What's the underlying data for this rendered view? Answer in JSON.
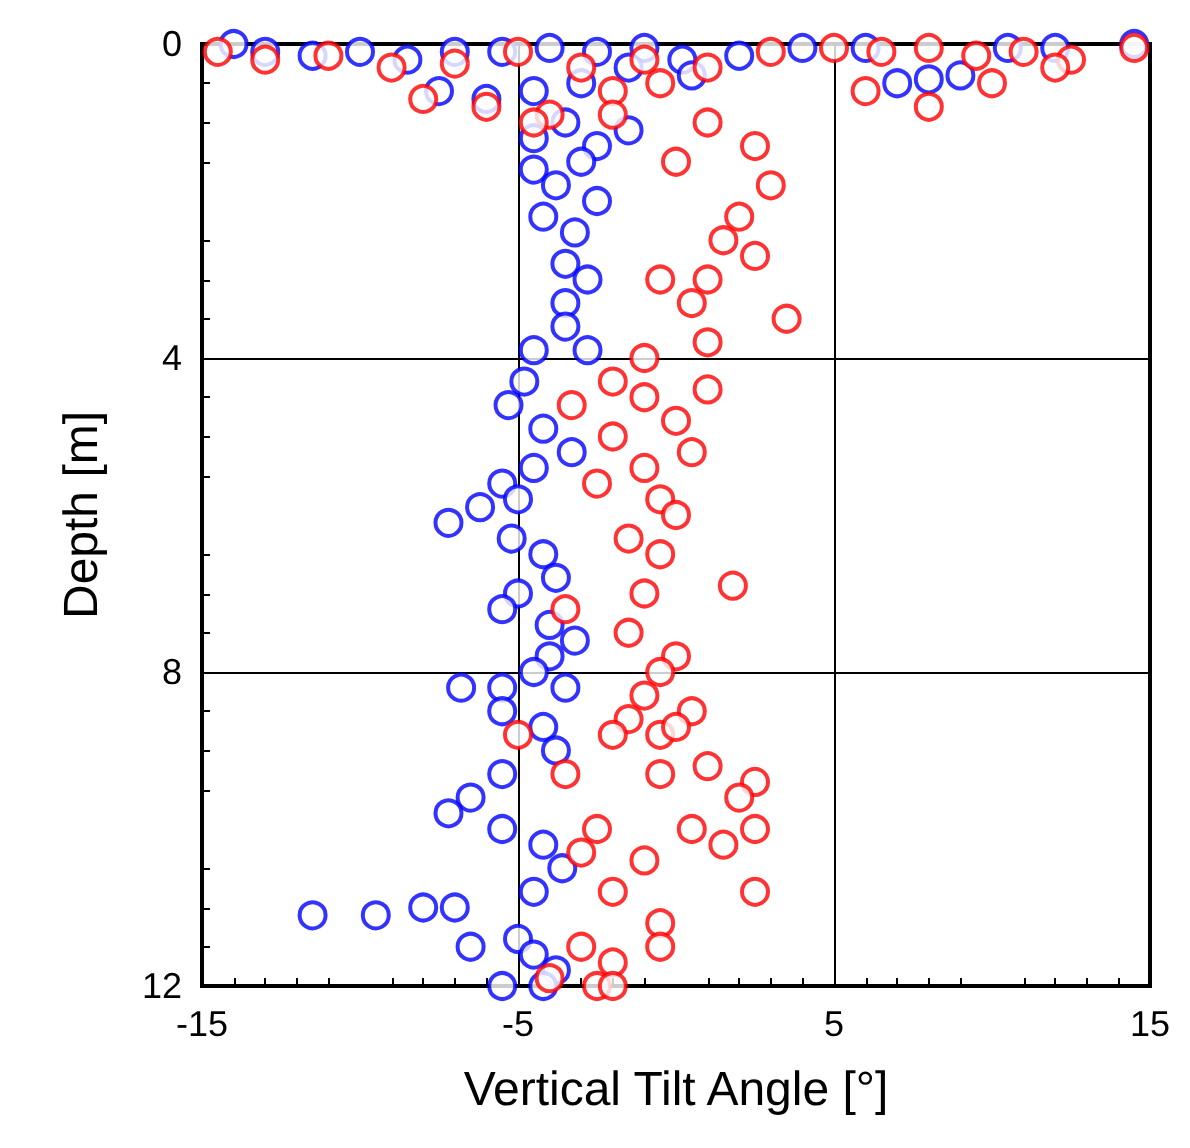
{
  "chart_data": {
    "type": "scatter",
    "xlabel": "Vertical Tilt Angle [°]",
    "ylabel": "Depth [m]",
    "xlim": [
      -15,
      15
    ],
    "xticks": [
      -15,
      -5,
      5,
      15
    ],
    "ylim": [
      12,
      0
    ],
    "yticks": [
      0,
      4,
      8,
      12
    ],
    "grid": true,
    "marker": "circle",
    "series": [
      {
        "color": "#0000ff",
        "x": [
          -14,
          -13,
          -11.5,
          -10,
          -8.5,
          -7,
          -5.5,
          -4,
          -2.5,
          -1,
          0.2,
          2,
          4,
          6,
          8,
          10.5,
          12,
          14.5,
          -7.5,
          -6,
          -4.5,
          -3,
          -1.5,
          0.5,
          7,
          9,
          -4.5,
          -3.5,
          -2.5,
          -1.5,
          -4.5,
          -3.8,
          -3,
          -2.5,
          -3.2,
          -4.2,
          -3.5,
          -2.8,
          -3.5,
          -4.5,
          -3.5,
          -2.8,
          -4.8,
          -5.3,
          -4.2,
          -3.3,
          -4.5,
          -5.5,
          -5,
          -6.2,
          -7.2,
          -5.2,
          -4.2,
          -3.8,
          -5,
          -5.5,
          -4,
          -3.2,
          -4,
          -4.5,
          -3.5,
          -5.5,
          -6.8,
          -5.5,
          -4.2,
          -3.8,
          -5.5,
          -6.5,
          -7.2,
          -5.5,
          -4.2,
          -3.6,
          -4.5,
          -8,
          -11.5,
          -9.5,
          -7,
          -5,
          -6.5,
          -4.5,
          -3.8,
          -5.5,
          -4.2
        ],
        "values": [
          0.0,
          0.1,
          0.15,
          0.1,
          0.2,
          0.1,
          0.1,
          0.05,
          0.1,
          0.05,
          0.2,
          0.15,
          0.05,
          0.05,
          0.45,
          0.05,
          0.05,
          0.0,
          0.6,
          0.7,
          0.6,
          0.5,
          0.3,
          0.4,
          0.5,
          0.4,
          1.2,
          1.0,
          1.3,
          1.1,
          1.6,
          1.8,
          1.5,
          2.0,
          2.4,
          2.2,
          2.8,
          3.0,
          3.3,
          3.9,
          3.6,
          3.9,
          4.3,
          4.6,
          4.9,
          5.2,
          5.4,
          5.6,
          5.8,
          5.9,
          6.1,
          6.3,
          6.5,
          6.8,
          7.0,
          7.2,
          7.4,
          7.6,
          7.8,
          8.0,
          8.2,
          8.2,
          8.2,
          8.5,
          8.7,
          9.0,
          9.3,
          9.6,
          9.8,
          10.0,
          10.2,
          10.5,
          10.8,
          11.0,
          11.1,
          11.1,
          11.0,
          11.4,
          11.5,
          11.6,
          11.8,
          12.0,
          12.0
        ]
      },
      {
        "color": "#ff0000",
        "x": [
          -14.5,
          -13,
          -11,
          -9,
          -7,
          -5,
          -3,
          -1,
          1,
          3,
          5,
          6.5,
          8,
          9.5,
          11,
          12.5,
          14.5,
          -8,
          -6,
          -4,
          -2,
          -0.5,
          6,
          8,
          10,
          12,
          -4.5,
          -2,
          0,
          1,
          2.5,
          3,
          2,
          1.5,
          2.5,
          1,
          -0.5,
          0.5,
          3.5,
          1,
          -1,
          -2,
          -3.3,
          -1,
          1,
          0,
          -2,
          -1,
          0.5,
          -2.5,
          -0.5,
          0,
          -1.5,
          -0.5,
          1.8,
          -1,
          -3.5,
          -1.5,
          0,
          -0.5,
          -1,
          0.5,
          -1.5,
          -0.5,
          -5,
          -2,
          0,
          -3.5,
          -0.5,
          1,
          2.5,
          2,
          -2.5,
          0.5,
          2.5,
          -3,
          -1,
          1.5,
          2.5,
          -2,
          -0.5,
          -3,
          -2,
          -0.5,
          -4,
          -2.5,
          -2
        ],
        "values": [
          0.1,
          0.2,
          0.15,
          0.3,
          0.25,
          0.1,
          0.3,
          0.2,
          0.3,
          0.1,
          0.05,
          0.1,
          0.05,
          0.15,
          0.1,
          0.2,
          0.05,
          0.7,
          0.8,
          0.9,
          0.6,
          0.5,
          0.6,
          0.8,
          0.5,
          0.3,
          1.0,
          0.9,
          1.5,
          1.0,
          1.3,
          1.8,
          2.2,
          2.5,
          2.7,
          3.0,
          3.0,
          3.3,
          3.5,
          3.8,
          4.0,
          4.3,
          4.6,
          4.5,
          4.4,
          4.8,
          5.0,
          5.4,
          5.2,
          5.6,
          5.8,
          6.0,
          6.3,
          6.5,
          6.9,
          7.0,
          7.2,
          7.5,
          7.8,
          8.0,
          8.3,
          8.5,
          8.6,
          8.8,
          8.8,
          8.8,
          8.7,
          9.3,
          9.3,
          9.2,
          9.4,
          9.6,
          10.0,
          10.0,
          10.0,
          10.3,
          10.4,
          10.2,
          10.8,
          10.8,
          11.2,
          11.5,
          11.7,
          11.5,
          11.9,
          12.0,
          12.0
        ]
      }
    ]
  }
}
